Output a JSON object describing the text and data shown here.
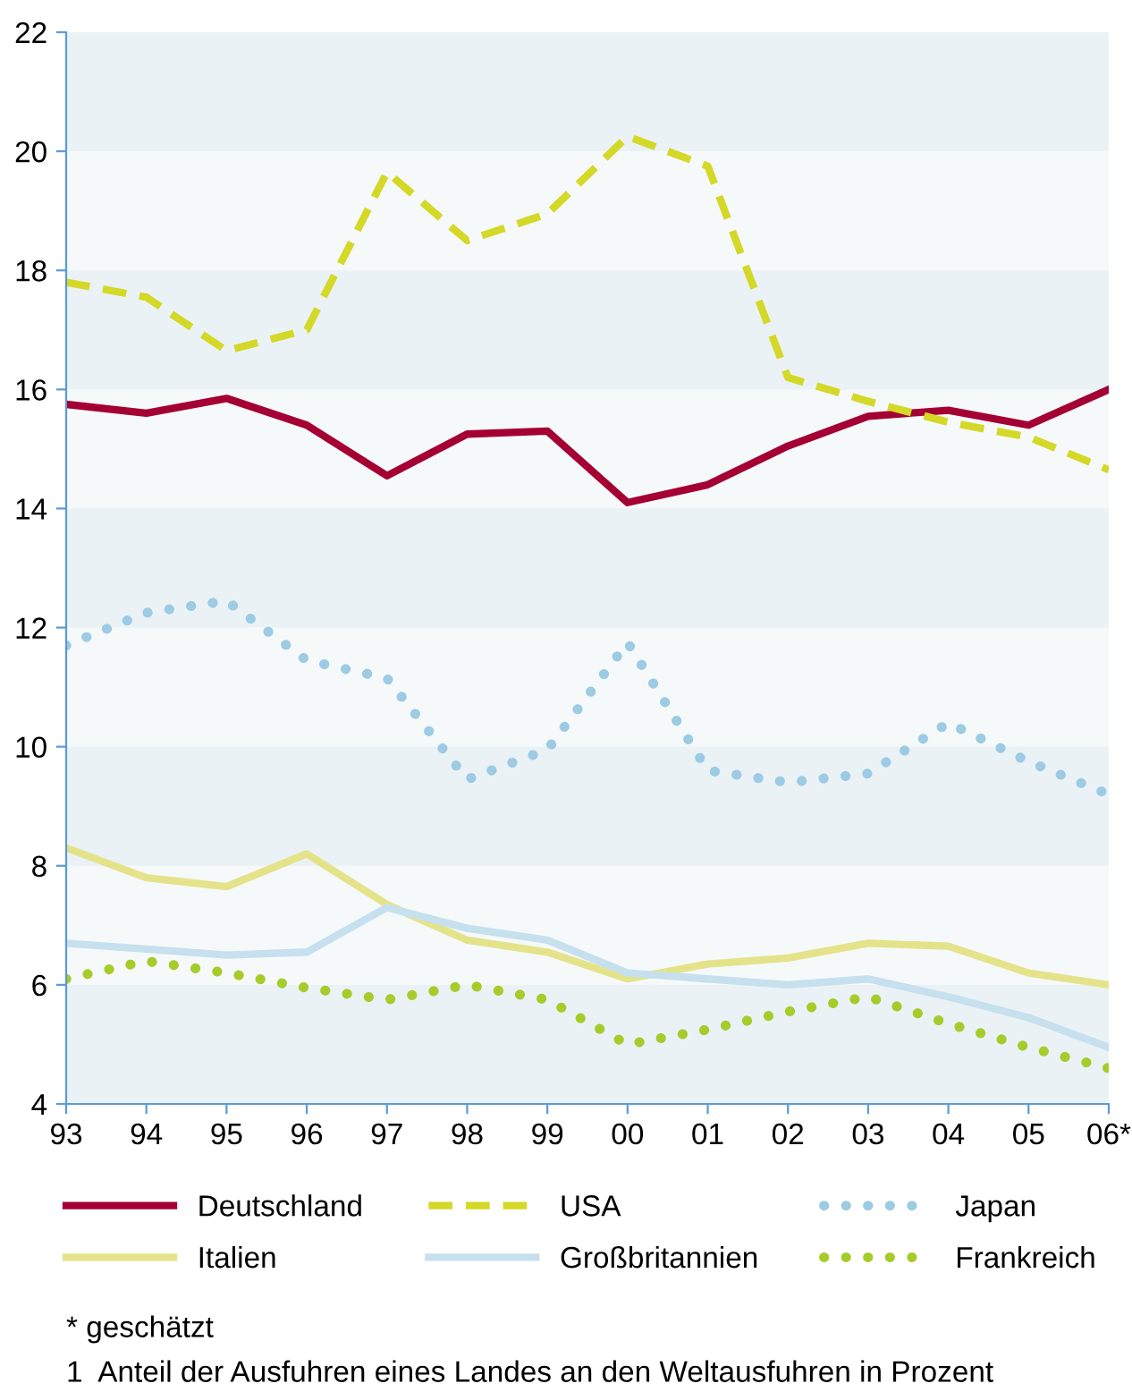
{
  "chart_data": {
    "type": "line",
    "categories": [
      "93",
      "94",
      "95",
      "96",
      "97",
      "98",
      "99",
      "00",
      "01",
      "02",
      "03",
      "04",
      "05",
      "06*"
    ],
    "ylim": [
      4,
      22
    ],
    "yticks": [
      4,
      6,
      8,
      10,
      12,
      14,
      16,
      18,
      20,
      22
    ],
    "legend": "bottom",
    "marker": "none",
    "series": [
      {
        "name": "Deutschland",
        "color": "#a50034",
        "line_style": "solid",
        "values": [
          15.75,
          15.6,
          15.85,
          15.4,
          14.55,
          15.25,
          15.3,
          14.1,
          14.4,
          15.05,
          15.55,
          15.65,
          15.4,
          16.0
        ]
      },
      {
        "name": "USA",
        "color": "#d4d826",
        "line_style": "dashed",
        "values": [
          17.8,
          17.55,
          16.65,
          17.0,
          19.65,
          18.5,
          18.95,
          20.25,
          19.75,
          16.2,
          15.8,
          15.45,
          15.2,
          14.65
        ]
      },
      {
        "name": "Japan",
        "color": "#9ccbe3",
        "line_style": "dotted",
        "values": [
          11.7,
          12.25,
          12.45,
          11.45,
          11.15,
          9.45,
          9.95,
          11.75,
          9.6,
          9.4,
          9.55,
          10.4,
          9.75,
          9.2
        ]
      },
      {
        "name": "Italien",
        "color": "#e4e38a",
        "line_style": "solid",
        "values": [
          8.3,
          7.8,
          7.65,
          8.2,
          7.35,
          6.75,
          6.55,
          6.1,
          6.35,
          6.45,
          6.7,
          6.65,
          6.2,
          6.0
        ]
      },
      {
        "name": "Großbritannien",
        "color": "#c6e0ee",
        "line_style": "solid",
        "values": [
          6.7,
          6.6,
          6.5,
          6.55,
          7.3,
          6.95,
          6.75,
          6.2,
          6.1,
          6.0,
          6.1,
          5.8,
          5.45,
          4.95
        ]
      },
      {
        "name": "Frankreich",
        "color": "#a6cc2a",
        "line_style": "dotted",
        "values": [
          6.1,
          6.4,
          6.2,
          5.95,
          5.75,
          6.0,
          5.75,
          5.0,
          5.25,
          5.55,
          5.8,
          5.35,
          4.95,
          4.6
        ]
      }
    ],
    "annotations": [
      "* geschätzt",
      "1  Anteil der Ausfuhren eines Landes an den Weltausfuhren in Prozent"
    ]
  }
}
